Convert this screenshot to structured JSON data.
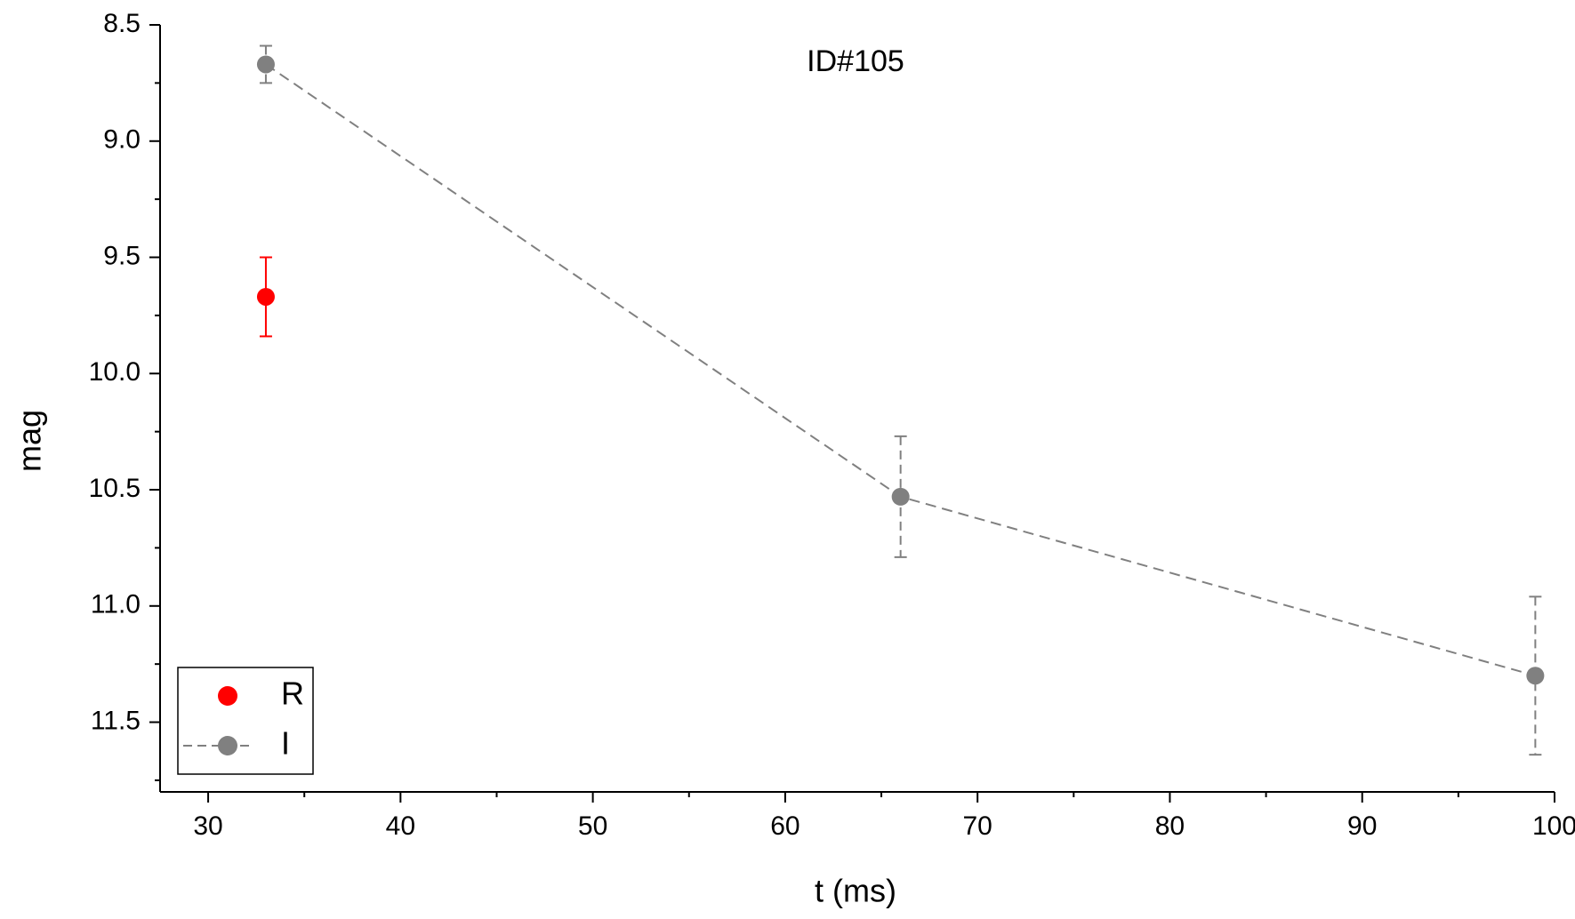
{
  "chart_data": {
    "type": "scatter",
    "title": "ID#105",
    "x_label": "t (ms)",
    "y_label": "mag",
    "xlim": [
      27.5,
      100
    ],
    "xticks": [
      30,
      40,
      50,
      60,
      70,
      80,
      90,
      100
    ],
    "ylim": [
      8.5,
      11.8
    ],
    "yticks": [
      8.5,
      {
        "value": 9,
        "label": "9.0"
      },
      9.5,
      {
        "value": 10,
        "label": "10.0"
      },
      10.5,
      {
        "value": 11,
        "label": "11.0"
      },
      11.5
    ],
    "y_inverted": true,
    "legend": "lower left",
    "series": [
      {
        "name": "R",
        "color": "#ff0000",
        "line": false,
        "x": [
          33
        ],
        "values": [
          9.67
        ],
        "errors": [
          0.17
        ]
      },
      {
        "name": "I",
        "color": "#808080",
        "line": true,
        "x": [
          33,
          66,
          99
        ],
        "values": [
          8.67,
          10.53,
          11.3
        ],
        "errors": [
          0.08,
          0.26,
          0.34
        ]
      }
    ]
  }
}
